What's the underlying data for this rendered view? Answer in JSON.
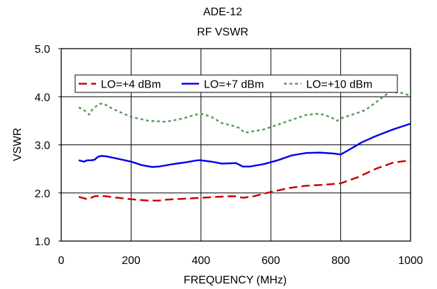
{
  "chart_data": {
    "type": "line",
    "title": "ADE-12",
    "subtitle": "RF VSWR",
    "xlabel": "FREQUENCY (MHz)",
    "ylabel": "VSWR",
    "xlim": [
      0,
      1000
    ],
    "ylim": [
      1.0,
      5.0
    ],
    "x_ticks": [
      0,
      200,
      400,
      600,
      800,
      1000
    ],
    "x_tick_labels": [
      "0",
      "200",
      "400",
      "600",
      "800",
      "1000"
    ],
    "y_ticks": [
      1.0,
      2.0,
      3.0,
      4.0,
      5.0
    ],
    "y_tick_labels": [
      "1.0",
      "2.0",
      "3.0",
      "4.0",
      "5.0"
    ],
    "grid": true,
    "legend_position": "top",
    "series": [
      {
        "name": "LO=+4 dBm",
        "color": "#cc0000",
        "style": "dashed",
        "x": [
          50,
          60,
          75,
          85,
          95,
          110,
          130,
          150,
          200,
          250,
          280,
          300,
          350,
          400,
          450,
          480,
          500,
          520,
          550,
          600,
          650,
          700,
          750,
          800,
          850,
          900,
          950,
          1000
        ],
        "y": [
          1.92,
          1.9,
          1.87,
          1.9,
          1.93,
          1.94,
          1.93,
          1.91,
          1.87,
          1.84,
          1.84,
          1.86,
          1.88,
          1.9,
          1.92,
          1.93,
          1.93,
          1.9,
          1.93,
          2.02,
          2.1,
          2.15,
          2.17,
          2.2,
          2.33,
          2.5,
          2.63,
          2.68
        ]
      },
      {
        "name": "LO=+7 dBm",
        "color": "#0000ee",
        "style": "solid",
        "x": [
          50,
          65,
          75,
          85,
          95,
          105,
          115,
          130,
          150,
          200,
          230,
          260,
          280,
          320,
          360,
          390,
          400,
          430,
          460,
          500,
          520,
          540,
          580,
          620,
          660,
          700,
          740,
          780,
          800,
          820,
          860,
          900,
          950,
          1000
        ],
        "y": [
          2.68,
          2.65,
          2.68,
          2.68,
          2.69,
          2.75,
          2.77,
          2.76,
          2.73,
          2.65,
          2.58,
          2.54,
          2.55,
          2.6,
          2.64,
          2.68,
          2.68,
          2.65,
          2.61,
          2.62,
          2.55,
          2.55,
          2.6,
          2.68,
          2.78,
          2.83,
          2.84,
          2.82,
          2.8,
          2.88,
          3.05,
          3.18,
          3.32,
          3.44
        ]
      },
      {
        "name": "LO=+10 dBm",
        "color": "#5a9a5a",
        "style": "dotted",
        "x": [
          50,
          65,
          80,
          90,
          100,
          110,
          120,
          150,
          200,
          250,
          300,
          350,
          380,
          400,
          430,
          460,
          490,
          510,
          525,
          540,
          580,
          620,
          660,
          700,
          740,
          770,
          790,
          800,
          830,
          870,
          900,
          940,
          975,
          1000
        ],
        "y": [
          3.78,
          3.72,
          3.63,
          3.75,
          3.8,
          3.85,
          3.86,
          3.74,
          3.58,
          3.5,
          3.48,
          3.55,
          3.62,
          3.65,
          3.58,
          3.45,
          3.4,
          3.35,
          3.25,
          3.27,
          3.32,
          3.42,
          3.52,
          3.62,
          3.65,
          3.58,
          3.5,
          3.55,
          3.62,
          3.72,
          3.88,
          4.1,
          4.08,
          4.02
        ]
      }
    ]
  }
}
